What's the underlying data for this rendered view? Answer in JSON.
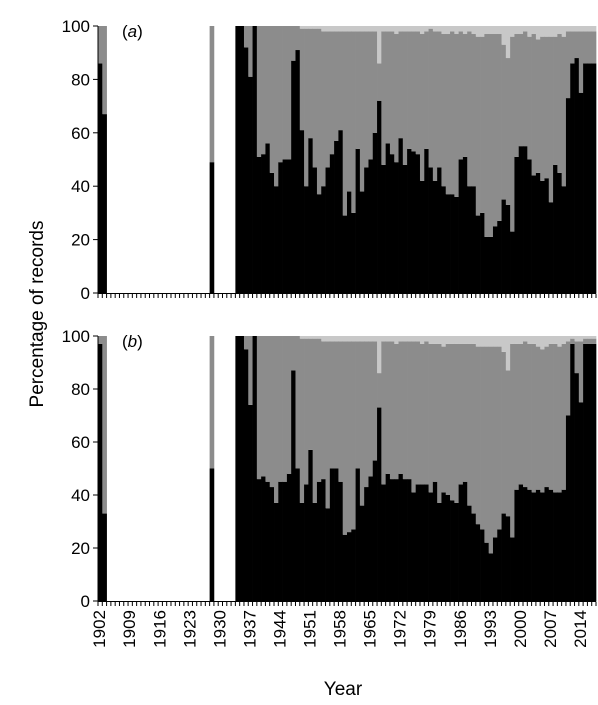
{
  "colors": {
    "black": "#000000",
    "mid": "#8c8c8c",
    "light": "#c8c8c8",
    "axis": "#000000"
  },
  "chart_data": [
    {
      "type": "bar",
      "stacked": true,
      "panel_label": "a",
      "ylim": [
        0,
        100
      ],
      "yticks": [
        0,
        20,
        40,
        60,
        80,
        100
      ],
      "ylabel": "Percentage of records",
      "xlabel": "Year",
      "x_range": [
        1902,
        2017
      ],
      "xtick_labels": [
        "1902",
        "1909",
        "1916",
        "1923",
        "1930",
        "1937",
        "1944",
        "1951",
        "1958",
        "1965",
        "1972",
        "1979",
        "1986",
        "1993",
        "2000",
        "2007",
        "2014"
      ],
      "years": [
        1902,
        1903,
        1904,
        1905,
        1906,
        1907,
        1908,
        1909,
        1910,
        1911,
        1912,
        1913,
        1914,
        1915,
        1916,
        1917,
        1918,
        1919,
        1920,
        1921,
        1922,
        1923,
        1924,
        1925,
        1926,
        1927,
        1928,
        1929,
        1930,
        1931,
        1932,
        1933,
        1934,
        1935,
        1936,
        1937,
        1938,
        1939,
        1940,
        1941,
        1942,
        1943,
        1944,
        1945,
        1946,
        1947,
        1948,
        1949,
        1950,
        1951,
        1952,
        1953,
        1954,
        1955,
        1956,
        1957,
        1958,
        1959,
        1960,
        1961,
        1962,
        1963,
        1964,
        1965,
        1966,
        1967,
        1968,
        1969,
        1970,
        1971,
        1972,
        1973,
        1974,
        1975,
        1976,
        1977,
        1978,
        1979,
        1980,
        1981,
        1982,
        1983,
        1984,
        1985,
        1986,
        1987,
        1988,
        1989,
        1990,
        1991,
        1992,
        1993,
        1994,
        1995,
        1996,
        1997,
        1998,
        1999,
        2000,
        2001,
        2002,
        2003,
        2004,
        2005,
        2006,
        2007,
        2008,
        2009,
        2010,
        2011,
        2012,
        2013,
        2014,
        2015,
        2016,
        2017
      ],
      "black": [
        86,
        67,
        0,
        0,
        0,
        0,
        0,
        0,
        0,
        0,
        0,
        0,
        0,
        0,
        0,
        0,
        0,
        0,
        0,
        0,
        0,
        0,
        0,
        0,
        0,
        0,
        49,
        0,
        0,
        0,
        0,
        0,
        100,
        100,
        92,
        81,
        100,
        51,
        52,
        56,
        45,
        40,
        49,
        50,
        50,
        87,
        91,
        61,
        40,
        58,
        47,
        37,
        40,
        47,
        52,
        57,
        61,
        29,
        38,
        30,
        54,
        38,
        47,
        50,
        60,
        72,
        48,
        56,
        52,
        49,
        58,
        48,
        54,
        53,
        52,
        42,
        54,
        47,
        42,
        47,
        40,
        37,
        37,
        36,
        50,
        51,
        40,
        40,
        29,
        30,
        21,
        21,
        25,
        27,
        35,
        33,
        23,
        51,
        55,
        55,
        50,
        44,
        45,
        42,
        43,
        34,
        48,
        45,
        40,
        73,
        86,
        88,
        75,
        86,
        86,
        86,
        86
      ],
      "mid": [
        14,
        33,
        0,
        0,
        0,
        0,
        0,
        0,
        0,
        0,
        0,
        0,
        0,
        0,
        0,
        0,
        0,
        0,
        0,
        0,
        0,
        0,
        0,
        0,
        0,
        0,
        51,
        0,
        0,
        0,
        0,
        0,
        0,
        0,
        8,
        19,
        0,
        49,
        48,
        44,
        55,
        60,
        51,
        50,
        50,
        13,
        9,
        38,
        59,
        41,
        52,
        62,
        58,
        51,
        46,
        41,
        37,
        69,
        60,
        68,
        44,
        60,
        51,
        48,
        38,
        14,
        50,
        42,
        46,
        48,
        40,
        50,
        44,
        45,
        46,
        55,
        44,
        52,
        56,
        51,
        57,
        60,
        61,
        61,
        48,
        46,
        58,
        57,
        67,
        66,
        76,
        76,
        72,
        70,
        58,
        55,
        73,
        46,
        42,
        43,
        46,
        53,
        50,
        54,
        53,
        62,
        48,
        52,
        56,
        25,
        12,
        10,
        23,
        12,
        12,
        12,
        12
      ],
      "light": [
        0,
        0,
        0,
        0,
        0,
        0,
        0,
        0,
        0,
        0,
        0,
        0,
        0,
        0,
        0,
        0,
        0,
        0,
        0,
        0,
        0,
        0,
        0,
        0,
        0,
        0,
        0,
        0,
        0,
        0,
        0,
        0,
        0,
        0,
        0,
        0,
        0,
        0,
        0,
        0,
        0,
        0,
        0,
        0,
        0,
        0,
        0,
        1,
        1,
        1,
        1,
        1,
        2,
        2,
        2,
        2,
        2,
        2,
        2,
        2,
        2,
        2,
        2,
        2,
        2,
        14,
        2,
        2,
        2,
        3,
        2,
        2,
        2,
        2,
        2,
        3,
        2,
        1,
        2,
        2,
        3,
        3,
        2,
        3,
        2,
        3,
        2,
        3,
        4,
        4,
        3,
        3,
        3,
        3,
        7,
        12,
        4,
        3,
        3,
        2,
        4,
        3,
        5,
        4,
        4,
        4,
        4,
        3,
        4,
        2,
        2,
        2,
        2,
        2,
        2,
        2,
        2
      ]
    },
    {
      "type": "bar",
      "stacked": true,
      "panel_label": "b",
      "ylim": [
        0,
        100
      ],
      "yticks": [
        0,
        20,
        40,
        60,
        80,
        100
      ],
      "ylabel": "Percentage of records",
      "xlabel": "Year",
      "x_range": [
        1902,
        2017
      ],
      "xtick_labels": [
        "1902",
        "1909",
        "1916",
        "1923",
        "1930",
        "1937",
        "1944",
        "1951",
        "1958",
        "1965",
        "1972",
        "1979",
        "1986",
        "1993",
        "2000",
        "2007",
        "2014"
      ],
      "years": [
        1902,
        1903,
        1904,
        1905,
        1906,
        1907,
        1908,
        1909,
        1910,
        1911,
        1912,
        1913,
        1914,
        1915,
        1916,
        1917,
        1918,
        1919,
        1920,
        1921,
        1922,
        1923,
        1924,
        1925,
        1926,
        1927,
        1928,
        1929,
        1930,
        1931,
        1932,
        1933,
        1934,
        1935,
        1936,
        1937,
        1938,
        1939,
        1940,
        1941,
        1942,
        1943,
        1944,
        1945,
        1946,
        1947,
        1948,
        1949,
        1950,
        1951,
        1952,
        1953,
        1954,
        1955,
        1956,
        1957,
        1958,
        1959,
        1960,
        1961,
        1962,
        1963,
        1964,
        1965,
        1966,
        1967,
        1968,
        1969,
        1970,
        1971,
        1972,
        1973,
        1974,
        1975,
        1976,
        1977,
        1978,
        1979,
        1980,
        1981,
        1982,
        1983,
        1984,
        1985,
        1986,
        1987,
        1988,
        1989,
        1990,
        1991,
        1992,
        1993,
        1994,
        1995,
        1996,
        1997,
        1998,
        1999,
        2000,
        2001,
        2002,
        2003,
        2004,
        2005,
        2006,
        2007,
        2008,
        2009,
        2010,
        2011,
        2012,
        2013,
        2014,
        2015,
        2016,
        2017
      ],
      "black": [
        97,
        33,
        0,
        0,
        0,
        0,
        0,
        0,
        0,
        0,
        0,
        0,
        0,
        0,
        0,
        0,
        0,
        0,
        0,
        0,
        0,
        0,
        0,
        0,
        0,
        0,
        50,
        0,
        0,
        0,
        0,
        0,
        100,
        100,
        95,
        74,
        100,
        46,
        47,
        45,
        43,
        37,
        45,
        45,
        48,
        87,
        50,
        37,
        44,
        57,
        37,
        45,
        46,
        35,
        50,
        50,
        45,
        25,
        26,
        27,
        50,
        36,
        43,
        47,
        53,
        73,
        44,
        48,
        46,
        46,
        48,
        46,
        46,
        41,
        44,
        44,
        44,
        41,
        45,
        37,
        41,
        40,
        38,
        37,
        44,
        45,
        36,
        33,
        29,
        27,
        22,
        18,
        24,
        27,
        33,
        32,
        24,
        42,
        44,
        43,
        42,
        41,
        42,
        41,
        43,
        42,
        41,
        41,
        42,
        70,
        97,
        86,
        75,
        97,
        97,
        97,
        97
      ],
      "mid": [
        3,
        67,
        0,
        0,
        0,
        0,
        0,
        0,
        0,
        0,
        0,
        0,
        0,
        0,
        0,
        0,
        0,
        0,
        0,
        0,
        0,
        0,
        0,
        0,
        0,
        0,
        50,
        0,
        0,
        0,
        0,
        0,
        0,
        0,
        5,
        26,
        0,
        54,
        53,
        55,
        57,
        63,
        55,
        55,
        52,
        13,
        50,
        62,
        55,
        42,
        62,
        54,
        52,
        63,
        48,
        48,
        53,
        73,
        72,
        71,
        48,
        62,
        55,
        51,
        45,
        13,
        54,
        50,
        52,
        51,
        50,
        52,
        52,
        57,
        54,
        53,
        54,
        56,
        52,
        60,
        55,
        57,
        59,
        60,
        53,
        52,
        61,
        64,
        67,
        69,
        74,
        78,
        72,
        69,
        61,
        55,
        73,
        55,
        53,
        55,
        55,
        56,
        54,
        54,
        53,
        55,
        56,
        55,
        55,
        28,
        2,
        12,
        23,
        2,
        2,
        2,
        2
      ],
      "light": [
        0,
        0,
        0,
        0,
        0,
        0,
        0,
        0,
        0,
        0,
        0,
        0,
        0,
        0,
        0,
        0,
        0,
        0,
        0,
        0,
        0,
        0,
        0,
        0,
        0,
        0,
        0,
        0,
        0,
        0,
        0,
        0,
        0,
        0,
        0,
        0,
        0,
        0,
        0,
        0,
        0,
        0,
        0,
        0,
        0,
        0,
        0,
        1,
        1,
        1,
        1,
        1,
        2,
        2,
        2,
        2,
        2,
        2,
        2,
        2,
        2,
        2,
        2,
        2,
        2,
        14,
        2,
        2,
        2,
        3,
        2,
        2,
        2,
        2,
        2,
        3,
        2,
        3,
        3,
        3,
        4,
        3,
        3,
        3,
        3,
        3,
        3,
        3,
        4,
        4,
        4,
        4,
        4,
        4,
        6,
        13,
        3,
        3,
        3,
        2,
        3,
        3,
        4,
        5,
        4,
        3,
        3,
        4,
        3,
        2,
        1,
        2,
        2,
        1,
        1,
        1,
        1
      ]
    }
  ]
}
